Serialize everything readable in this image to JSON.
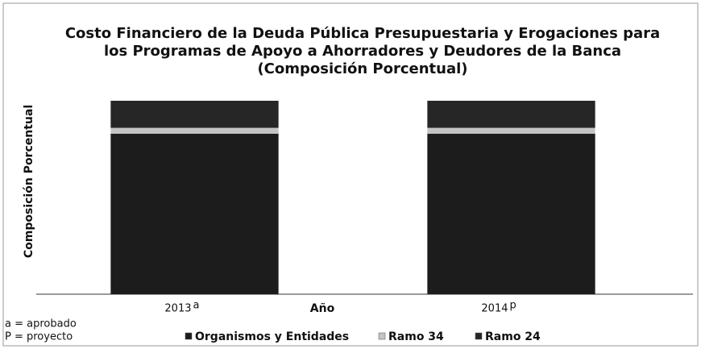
{
  "chart_data": {
    "type": "stacked_bar",
    "title": [
      "Costo Financiero de la Deuda Pública Presupuestaria y Erogaciones para",
      "los Programas de Apoyo a Ahorradores y Deudores de la Banca",
      "(Composición Porcentual)"
    ],
    "x_label": "Año",
    "y_label": "Composición Porcentual",
    "categories": [
      "2013",
      "2014"
    ],
    "category_notes": [
      "a",
      "p"
    ],
    "footnotes": [
      "a = aprobado",
      "P = proyecto"
    ],
    "ylim": [
      0,
      100
    ],
    "series": [
      {
        "name": "Organismos y Entidades",
        "color": "#1c1c1c",
        "values": [
          83,
          83
        ]
      },
      {
        "name": "Ramo 34",
        "color": "#c4c4c4",
        "values": [
          3,
          3
        ]
      },
      {
        "name": "Ramo 24",
        "color": "#262626",
        "values": [
          14,
          14
        ]
      }
    ]
  }
}
